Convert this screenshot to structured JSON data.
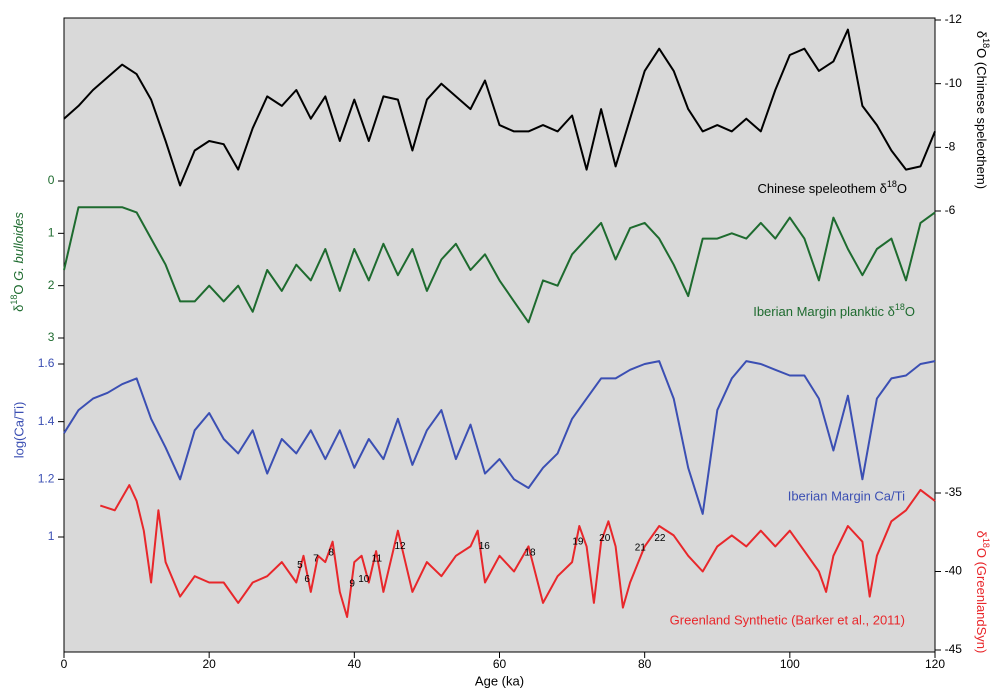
{
  "chart_data": [
    {
      "type": "line",
      "side": "right",
      "y_inverted": true,
      "y_label": [
        "δ",
        "18",
        "O (Chinese speleothem)"
      ],
      "ylim": [
        -12,
        -6
      ],
      "yticks": [
        -12,
        -10,
        -8,
        -6
      ],
      "xlim": [
        0,
        120
      ],
      "x": [
        0,
        2,
        4,
        6,
        8,
        10,
        12,
        14,
        16,
        18,
        20,
        22,
        24,
        26,
        28,
        30,
        32,
        34,
        36,
        38,
        40,
        42,
        44,
        46,
        48,
        50,
        52,
        54,
        56,
        58,
        60,
        62,
        64,
        66,
        68,
        70,
        72,
        74,
        76,
        78,
        80,
        82,
        84,
        86,
        88,
        90,
        92,
        94,
        96,
        98,
        100,
        102,
        104,
        106,
        108,
        110,
        112,
        114,
        116,
        118,
        120
      ],
      "series": [
        {
          "name": [
            "Chinese speleothem δ",
            "18",
            "O"
          ],
          "color": "#000000",
          "values": [
            -8.9,
            -9.3,
            -9.8,
            -10.2,
            -10.6,
            -10.3,
            -9.5,
            -8.2,
            -6.8,
            -7.9,
            -8.2,
            -8.1,
            -7.3,
            -8.6,
            -9.6,
            -9.3,
            -9.8,
            -8.9,
            -9.6,
            -8.2,
            -9.5,
            -8.2,
            -9.6,
            -9.5,
            -7.9,
            -9.5,
            -10.0,
            -9.6,
            -9.2,
            -10.1,
            -8.7,
            -8.5,
            -8.5,
            -8.7,
            -8.5,
            -9.0,
            -7.3,
            -9.2,
            -7.4,
            -8.9,
            -10.4,
            -11.1,
            -10.4,
            -9.2,
            -8.5,
            -8.7,
            -8.5,
            -8.9,
            -8.5,
            -9.8,
            -10.9,
            -11.1,
            -10.4,
            -10.7,
            -11.7,
            -9.3,
            -8.7,
            -7.9,
            -7.3,
            -7.4,
            -8.5
          ]
        }
      ]
    },
    {
      "type": "line",
      "side": "left",
      "y_inverted": true,
      "y_label": [
        "δ",
        "18",
        "O ",
        "G. bulloides"
      ],
      "ylim": [
        0,
        3
      ],
      "yticks": [
        0,
        1,
        2,
        3
      ],
      "xlim": [
        0,
        120
      ],
      "x": [
        0,
        2,
        4,
        6,
        8,
        10,
        12,
        14,
        16,
        18,
        20,
        22,
        24,
        26,
        28,
        30,
        32,
        34,
        36,
        38,
        40,
        42,
        44,
        46,
        48,
        50,
        52,
        54,
        56,
        58,
        60,
        62,
        64,
        66,
        68,
        70,
        72,
        74,
        76,
        78,
        80,
        82,
        84,
        86,
        88,
        90,
        92,
        94,
        96,
        98,
        100,
        102,
        104,
        106,
        108,
        110,
        112,
        114,
        116,
        118,
        120
      ],
      "series": [
        {
          "name": [
            "Iberian Margin planktic δ",
            "18",
            "O"
          ],
          "color": "#1e6b2f",
          "values": [
            1.7,
            0.5,
            0.5,
            0.5,
            0.5,
            0.6,
            1.1,
            1.6,
            2.3,
            2.3,
            2.0,
            2.3,
            2.0,
            2.5,
            1.7,
            2.1,
            1.6,
            1.9,
            1.3,
            2.1,
            1.3,
            1.9,
            1.2,
            1.8,
            1.3,
            2.1,
            1.5,
            1.2,
            1.7,
            1.4,
            1.9,
            2.3,
            2.7,
            1.9,
            2.0,
            1.4,
            1.1,
            0.8,
            1.5,
            0.9,
            0.8,
            1.1,
            1.6,
            2.2,
            1.1,
            1.1,
            1.0,
            1.1,
            0.8,
            1.1,
            0.7,
            1.1,
            1.9,
            0.7,
            1.3,
            1.8,
            1.3,
            1.1,
            1.9,
            0.8,
            0.6
          ]
        }
      ]
    },
    {
      "type": "line",
      "side": "left",
      "y_inverted": false,
      "y_label": "log(Ca/Ti)",
      "ylim": [
        1,
        1.6
      ],
      "yticks": [
        1,
        1.2,
        1.4,
        1.6
      ],
      "xlim": [
        0,
        120
      ],
      "x": [
        0,
        2,
        4,
        6,
        8,
        10,
        12,
        14,
        16,
        18,
        20,
        22,
        24,
        26,
        28,
        30,
        32,
        34,
        36,
        38,
        40,
        42,
        44,
        46,
        48,
        50,
        52,
        54,
        56,
        58,
        60,
        62,
        64,
        66,
        68,
        70,
        72,
        74,
        76,
        78,
        80,
        82,
        84,
        86,
        88,
        90,
        92,
        94,
        96,
        98,
        100,
        102,
        104,
        106,
        108,
        110,
        112,
        114,
        116,
        118,
        120
      ],
      "series": [
        {
          "name": "Iberian Margin Ca/Ti",
          "color": "#3b4fb3",
          "values": [
            1.36,
            1.44,
            1.48,
            1.5,
            1.53,
            1.55,
            1.41,
            1.31,
            1.2,
            1.37,
            1.43,
            1.34,
            1.29,
            1.37,
            1.22,
            1.34,
            1.29,
            1.37,
            1.27,
            1.37,
            1.24,
            1.34,
            1.27,
            1.41,
            1.25,
            1.37,
            1.44,
            1.27,
            1.39,
            1.22,
            1.27,
            1.2,
            1.17,
            1.24,
            1.29,
            1.41,
            1.48,
            1.55,
            1.55,
            1.58,
            1.6,
            1.61,
            1.48,
            1.24,
            1.08,
            1.44,
            1.55,
            1.61,
            1.6,
            1.58,
            1.56,
            1.56,
            1.48,
            1.3,
            1.49,
            1.2,
            1.48,
            1.55,
            1.56,
            1.6,
            1.61
          ]
        }
      ]
    },
    {
      "type": "line",
      "side": "right",
      "y_inverted": false,
      "y_label": [
        "δ",
        "18",
        "O (GreenlandSyn)"
      ],
      "ylim": [
        -45,
        -35
      ],
      "yticks": [
        -45,
        -40,
        -35
      ],
      "xlim": [
        0,
        120
      ],
      "x_label": "Age (ka)",
      "xticks": [
        0,
        20,
        40,
        60,
        80,
        100,
        120
      ],
      "x": [
        5,
        7,
        9,
        10,
        11,
        12,
        13,
        14,
        16,
        18,
        20,
        22,
        24,
        26,
        28,
        30,
        32,
        33,
        34,
        35,
        36,
        37,
        38,
        39,
        40,
        41,
        42,
        43,
        44,
        46,
        48,
        50,
        52,
        54,
        56,
        57,
        58,
        60,
        62,
        64,
        66,
        68,
        70,
        71,
        72,
        73,
        74,
        75,
        76,
        77,
        78,
        80,
        82,
        84,
        86,
        88,
        90,
        92,
        94,
        96,
        98,
        100,
        102,
        104,
        105,
        106,
        108,
        110,
        111,
        112,
        114,
        116,
        118,
        120
      ],
      "series": [
        {
          "name": "Greenland Synthetic (Barker et al., 2011)",
          "color": "#e8272b",
          "values": [
            -35.8,
            -36.1,
            -34.5,
            -35.5,
            -37.4,
            -40.7,
            -36.1,
            -39.4,
            -41.6,
            -40.3,
            -40.7,
            -40.7,
            -42.0,
            -40.7,
            -40.3,
            -39.4,
            -40.7,
            -39.0,
            -41.3,
            -39.0,
            -39.4,
            -38.1,
            -41.3,
            -42.9,
            -39.4,
            -39.0,
            -40.7,
            -38.7,
            -41.3,
            -37.4,
            -41.3,
            -39.4,
            -40.3,
            -39.0,
            -38.4,
            -37.4,
            -40.7,
            -39.0,
            -40.0,
            -38.4,
            -42.0,
            -40.3,
            -39.4,
            -37.1,
            -38.4,
            -42.0,
            -38.1,
            -36.8,
            -38.4,
            -42.3,
            -40.7,
            -38.4,
            -37.1,
            -37.7,
            -39.0,
            -40.0,
            -38.4,
            -37.7,
            -38.4,
            -37.4,
            -38.4,
            -37.4,
            -38.7,
            -40.0,
            -41.3,
            -39.0,
            -37.1,
            -38.1,
            -41.6,
            -39.0,
            -36.8,
            -36.1,
            -34.8,
            -35.5
          ]
        }
      ],
      "annotations": [
        {
          "text": "5",
          "x": 32.5,
          "y": -39.6
        },
        {
          "text": "6",
          "x": 33.5,
          "y": -40.5
        },
        {
          "text": "7",
          "x": 34.7,
          "y": -39.2
        },
        {
          "text": "8",
          "x": 36.8,
          "y": -38.8
        },
        {
          "text": "9",
          "x": 39.7,
          "y": -40.8
        },
        {
          "text": "10",
          "x": 41.3,
          "y": -40.5
        },
        {
          "text": "11",
          "x": 43.1,
          "y": -39.2
        },
        {
          "text": "12",
          "x": 46.3,
          "y": -38.4
        },
        {
          "text": "16",
          "x": 57.9,
          "y": -38.4
        },
        {
          "text": "18",
          "x": 64.2,
          "y": -38.8
        },
        {
          "text": "19",
          "x": 70.8,
          "y": -38.1
        },
        {
          "text": "20",
          "x": 74.5,
          "y": -37.9
        },
        {
          "text": "21",
          "x": 79.4,
          "y": -38.5
        },
        {
          "text": "22",
          "x": 82.1,
          "y": -37.9
        }
      ]
    }
  ]
}
